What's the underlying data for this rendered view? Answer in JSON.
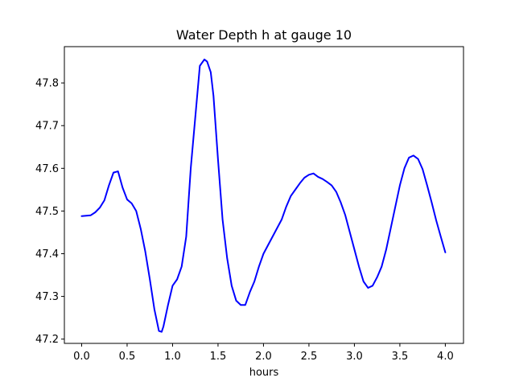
{
  "chart_data": {
    "type": "line",
    "title": "Water Depth h at gauge 10",
    "xlabel": "hours",
    "ylabel": "",
    "xlim": [
      -0.19,
      4.2
    ],
    "ylim": [
      47.19,
      47.885
    ],
    "xticks": [
      0.0,
      0.5,
      1.0,
      1.5,
      2.0,
      2.5,
      3.0,
      3.5,
      4.0
    ],
    "xtick_labels": [
      "0.0",
      "0.5",
      "1.0",
      "1.5",
      "2.0",
      "2.5",
      "3.0",
      "3.5",
      "4.0"
    ],
    "yticks": [
      47.2,
      47.3,
      47.4,
      47.5,
      47.6,
      47.7,
      47.8
    ],
    "ytick_labels": [
      "47.2",
      "47.3",
      "47.4",
      "47.5",
      "47.6",
      "47.7",
      "47.8"
    ],
    "grid": false,
    "series": [
      {
        "color": "#0000ff",
        "x": [
          0.0,
          0.05,
          0.1,
          0.15,
          0.2,
          0.25,
          0.3,
          0.35,
          0.4,
          0.45,
          0.5,
          0.55,
          0.6,
          0.65,
          0.7,
          0.75,
          0.8,
          0.85,
          0.88,
          0.9,
          0.95,
          1.0,
          1.05,
          1.1,
          1.15,
          1.2,
          1.25,
          1.3,
          1.35,
          1.38,
          1.42,
          1.45,
          1.5,
          1.55,
          1.6,
          1.65,
          1.7,
          1.75,
          1.8,
          1.85,
          1.9,
          1.95,
          2.0,
          2.05,
          2.1,
          2.15,
          2.2,
          2.25,
          2.3,
          2.35,
          2.4,
          2.45,
          2.5,
          2.55,
          2.6,
          2.65,
          2.7,
          2.75,
          2.8,
          2.85,
          2.9,
          2.95,
          3.0,
          3.05,
          3.1,
          3.15,
          3.2,
          3.25,
          3.3,
          3.35,
          3.4,
          3.45,
          3.5,
          3.55,
          3.6,
          3.65,
          3.7,
          3.75,
          3.8,
          3.85,
          3.9,
          3.95,
          4.0
        ],
        "y": [
          47.488,
          47.489,
          47.49,
          47.497,
          47.508,
          47.525,
          47.56,
          47.59,
          47.593,
          47.555,
          47.527,
          47.518,
          47.5,
          47.458,
          47.405,
          47.34,
          47.27,
          47.219,
          47.217,
          47.23,
          47.28,
          47.325,
          47.34,
          47.37,
          47.44,
          47.6,
          47.72,
          47.84,
          47.855,
          47.85,
          47.825,
          47.77,
          47.62,
          47.48,
          47.39,
          47.325,
          47.29,
          47.28,
          47.28,
          47.31,
          47.335,
          47.37,
          47.4,
          47.42,
          47.44,
          47.46,
          47.48,
          47.51,
          47.535,
          47.55,
          47.565,
          47.578,
          47.585,
          47.588,
          47.58,
          47.575,
          47.568,
          47.56,
          47.545,
          47.52,
          47.49,
          47.45,
          47.41,
          47.37,
          47.335,
          47.32,
          47.325,
          47.345,
          47.37,
          47.41,
          47.46,
          47.51,
          47.56,
          47.6,
          47.625,
          47.63,
          47.622,
          47.598,
          47.56,
          47.52,
          47.478,
          47.44,
          47.403
        ]
      }
    ]
  }
}
